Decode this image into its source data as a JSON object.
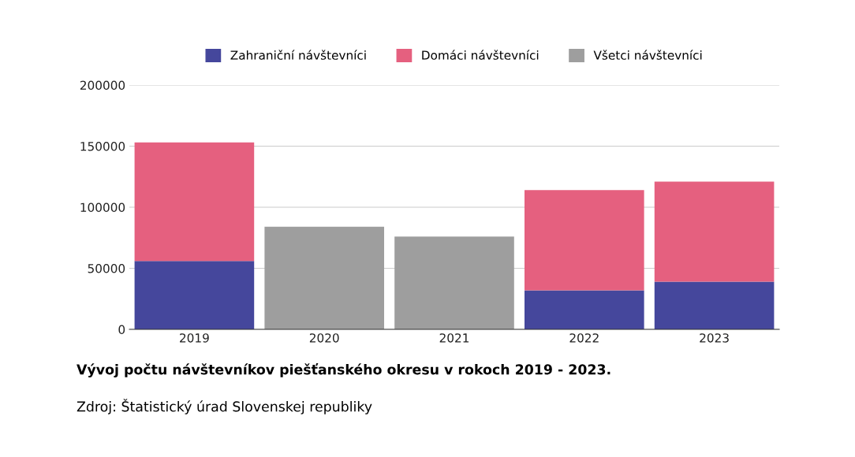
{
  "chart_data": {
    "type": "bar",
    "stacked": true,
    "title": "Vývoj počtu návštevníkov piešťanského okresu v rokoch 2019 - 2023.",
    "annotations": [
      "Zdroj: Štatistický úrad Slovenskej republiky"
    ],
    "categories": [
      "2019",
      "2020",
      "2021",
      "2022",
      "2023"
    ],
    "series": [
      {
        "name": "Zahraniční návštevníci",
        "color": "#45479c",
        "values": [
          56000,
          null,
          null,
          32000,
          39000
        ]
      },
      {
        "name": "Domáci návštevníci",
        "color": "#e5607f",
        "values": [
          97000,
          null,
          null,
          82000,
          82000
        ]
      },
      {
        "name": "Všetci návštevníci",
        "color": "#9e9e9e",
        "values": [
          null,
          84000,
          76000,
          null,
          null
        ]
      }
    ],
    "ylim": [
      0,
      200000
    ],
    "yticks": [
      0,
      50000,
      100000,
      150000,
      200000
    ],
    "grid": "y",
    "legend": "top"
  }
}
